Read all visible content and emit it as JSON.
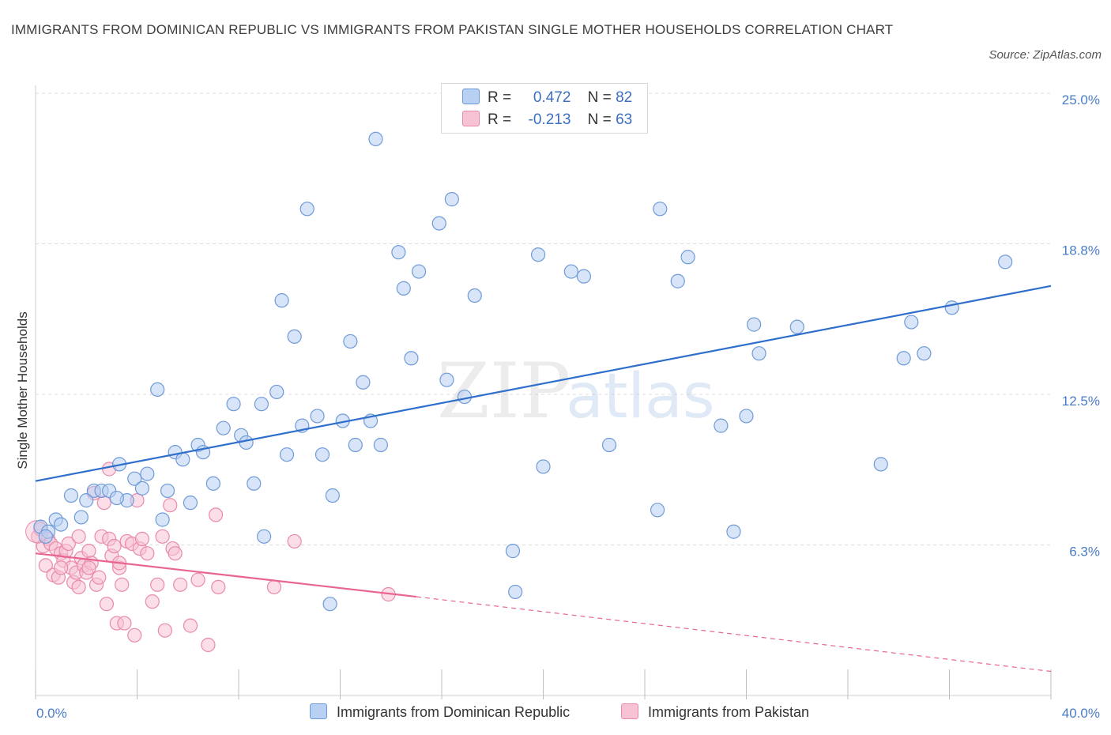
{
  "header": {
    "title": "IMMIGRANTS FROM DOMINICAN REPUBLIC VS IMMIGRANTS FROM PAKISTAN SINGLE MOTHER HOUSEHOLDS CORRELATION CHART",
    "source": "Source: ZipAtlas.com"
  },
  "watermark": {
    "zip": "ZIP",
    "atlas": "atlas"
  },
  "legend_top": {
    "r_label": "R =",
    "n_label": "N =",
    "rows": [
      {
        "r": "0.472",
        "n": "82"
      },
      {
        "r": "-0.213",
        "n": "63"
      }
    ]
  },
  "colors": {
    "blue_fill": "#b8d0f3",
    "blue_stroke": "#6f9ad8",
    "blue_line": "#2f6fcb",
    "pink_fill": "#f7c2d4",
    "pink_stroke": "#e98aaa",
    "pink_line": "#e8658f",
    "tick_text": "#4a7cc7",
    "grid": "#dcdcdc"
  },
  "chart_data": {
    "type": "scatter",
    "title": "IMMIGRANTS FROM DOMINICAN REPUBLIC VS IMMIGRANTS FROM PAKISTAN SINGLE MOTHER HOUSEHOLDS CORRELATION CHART",
    "ylabel": "Single Mother Households",
    "xlabel": "",
    "xlim": [
      0,
      40
    ],
    "ylim": [
      0,
      25
    ],
    "x_tick_labels": [
      {
        "value": 0,
        "label": "0.0%"
      },
      {
        "value": 40,
        "label": "40.0%"
      }
    ],
    "y_tick_labels": [
      {
        "value": 6.25,
        "label": "6.3%"
      },
      {
        "value": 12.5,
        "label": "12.5%"
      },
      {
        "value": 18.75,
        "label": "18.8%"
      },
      {
        "value": 25,
        "label": "25.0%"
      }
    ],
    "grid": true,
    "legend_position": "top-center",
    "series": [
      {
        "name": "Immigrants from Dominican Republic",
        "color": "#6f9ad8",
        "r": 0.472,
        "n": 82,
        "trend": {
          "x": [
            0,
            40
          ],
          "y": [
            8.9,
            17.0
          ]
        },
        "points": [
          [
            0.2,
            7.0
          ],
          [
            0.5,
            6.8
          ],
          [
            0.8,
            7.3
          ],
          [
            1.0,
            7.1
          ],
          [
            1.4,
            8.3
          ],
          [
            1.8,
            7.4
          ],
          [
            2.0,
            8.1
          ],
          [
            2.3,
            8.5
          ],
          [
            2.6,
            8.5
          ],
          [
            2.9,
            8.5
          ],
          [
            3.3,
            9.6
          ],
          [
            3.6,
            8.1
          ],
          [
            3.9,
            9.0
          ],
          [
            4.2,
            8.6
          ],
          [
            4.4,
            9.2
          ],
          [
            4.8,
            12.7
          ],
          [
            5.0,
            7.3
          ],
          [
            5.2,
            8.5
          ],
          [
            5.5,
            10.1
          ],
          [
            5.8,
            9.8
          ],
          [
            6.1,
            8.0
          ],
          [
            6.4,
            10.4
          ],
          [
            6.6,
            10.1
          ],
          [
            7.0,
            8.8
          ],
          [
            7.4,
            11.1
          ],
          [
            7.8,
            12.1
          ],
          [
            8.1,
            10.8
          ],
          [
            8.3,
            10.5
          ],
          [
            8.6,
            8.8
          ],
          [
            8.9,
            12.1
          ],
          [
            9.0,
            6.6
          ],
          [
            9.5,
            12.6
          ],
          [
            9.7,
            16.4
          ],
          [
            9.9,
            10.0
          ],
          [
            10.2,
            14.9
          ],
          [
            10.5,
            11.2
          ],
          [
            10.7,
            20.2
          ],
          [
            11.1,
            11.6
          ],
          [
            11.3,
            10.0
          ],
          [
            11.7,
            8.3
          ],
          [
            12.1,
            11.4
          ],
          [
            12.4,
            14.7
          ],
          [
            12.6,
            10.4
          ],
          [
            12.9,
            13.0
          ],
          [
            13.2,
            11.4
          ],
          [
            13.4,
            23.1
          ],
          [
            13.6,
            10.4
          ],
          [
            14.3,
            18.4
          ],
          [
            14.5,
            16.9
          ],
          [
            14.8,
            14.0
          ],
          [
            15.1,
            17.6
          ],
          [
            15.9,
            19.6
          ],
          [
            16.2,
            13.1
          ],
          [
            16.4,
            20.6
          ],
          [
            16.9,
            12.4
          ],
          [
            17.3,
            16.6
          ],
          [
            18.8,
            6.0
          ],
          [
            18.9,
            4.3
          ],
          [
            19.8,
            18.3
          ],
          [
            20.0,
            9.5
          ],
          [
            21.1,
            17.6
          ],
          [
            21.6,
            17.4
          ],
          [
            22.6,
            10.4
          ],
          [
            24.5,
            7.7
          ],
          [
            24.6,
            20.2
          ],
          [
            25.3,
            17.2
          ],
          [
            25.7,
            18.2
          ],
          [
            27.0,
            11.2
          ],
          [
            27.5,
            6.8
          ],
          [
            28.0,
            11.6
          ],
          [
            28.3,
            15.4
          ],
          [
            28.5,
            14.2
          ],
          [
            30.0,
            15.3
          ],
          [
            33.3,
            9.6
          ],
          [
            34.2,
            14.0
          ],
          [
            34.5,
            15.5
          ],
          [
            35.0,
            14.2
          ],
          [
            36.1,
            16.1
          ],
          [
            38.2,
            18.0
          ],
          [
            11.6,
            3.8
          ],
          [
            0.4,
            6.6
          ],
          [
            3.2,
            8.2
          ]
        ]
      },
      {
        "name": "Immigrants from Pakistan",
        "color": "#e98aaa",
        "r": -0.213,
        "n": 63,
        "trend": {
          "x": [
            0,
            15.0
          ],
          "y": [
            5.9,
            4.1
          ]
        },
        "trend_dashed": {
          "x": [
            15.0,
            40
          ],
          "y": [
            4.1,
            1.0
          ]
        },
        "points": [
          [
            0.1,
            6.6
          ],
          [
            0.3,
            6.2
          ],
          [
            0.4,
            5.4
          ],
          [
            0.5,
            6.5
          ],
          [
            0.6,
            6.3
          ],
          [
            0.7,
            5.0
          ],
          [
            0.8,
            6.1
          ],
          [
            0.9,
            4.9
          ],
          [
            1.0,
            5.9
          ],
          [
            1.1,
            5.6
          ],
          [
            1.2,
            6.0
          ],
          [
            1.3,
            6.3
          ],
          [
            1.4,
            5.3
          ],
          [
            1.5,
            4.7
          ],
          [
            1.6,
            5.1
          ],
          [
            1.7,
            4.5
          ],
          [
            1.8,
            5.7
          ],
          [
            1.9,
            5.4
          ],
          [
            2.0,
            5.1
          ],
          [
            2.1,
            6.0
          ],
          [
            2.2,
            5.5
          ],
          [
            2.3,
            8.4
          ],
          [
            2.4,
            4.6
          ],
          [
            2.5,
            4.9
          ],
          [
            2.6,
            6.6
          ],
          [
            2.7,
            8.0
          ],
          [
            2.8,
            3.8
          ],
          [
            2.9,
            6.5
          ],
          [
            3.0,
            5.8
          ],
          [
            3.1,
            6.2
          ],
          [
            3.2,
            3.0
          ],
          [
            3.3,
            5.3
          ],
          [
            3.4,
            4.6
          ],
          [
            3.5,
            3.0
          ],
          [
            3.6,
            6.4
          ],
          [
            3.8,
            6.3
          ],
          [
            3.9,
            2.5
          ],
          [
            4.0,
            8.1
          ],
          [
            4.1,
            6.1
          ],
          [
            4.2,
            6.5
          ],
          [
            4.4,
            5.9
          ],
          [
            4.6,
            3.9
          ],
          [
            5.0,
            6.6
          ],
          [
            5.1,
            2.7
          ],
          [
            5.3,
            7.9
          ],
          [
            5.4,
            6.1
          ],
          [
            5.5,
            5.9
          ],
          [
            5.7,
            4.6
          ],
          [
            6.1,
            2.9
          ],
          [
            6.4,
            4.8
          ],
          [
            6.8,
            2.1
          ],
          [
            7.1,
            7.5
          ],
          [
            7.2,
            4.5
          ],
          [
            9.4,
            4.5
          ],
          [
            10.2,
            6.4
          ],
          [
            13.9,
            4.2
          ],
          [
            3.3,
            5.5
          ],
          [
            2.1,
            5.3
          ],
          [
            1.0,
            5.3
          ],
          [
            0.2,
            6.9
          ],
          [
            2.9,
            9.4
          ],
          [
            4.8,
            4.6
          ],
          [
            1.7,
            6.6
          ]
        ]
      }
    ]
  },
  "bottom_legend": [
    {
      "label": "Immigrants from Dominican Republic"
    },
    {
      "label": "Immigrants from Pakistan"
    }
  ]
}
